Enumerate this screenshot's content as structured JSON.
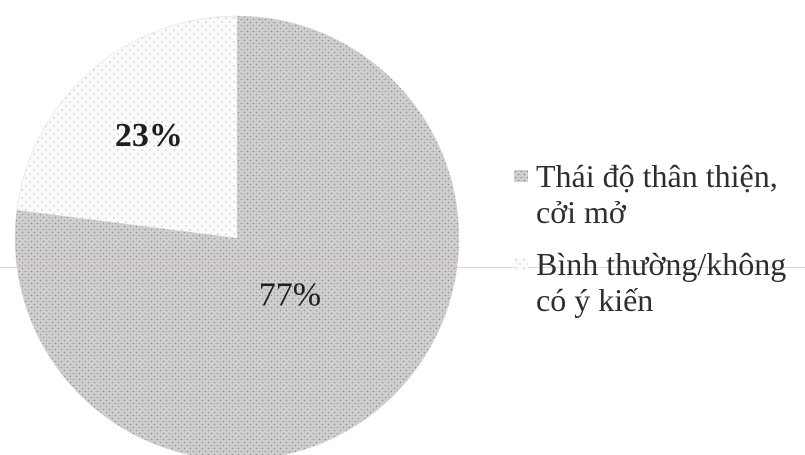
{
  "chart_data": {
    "type": "pie",
    "categories": [
      "Thái độ thân thiện, cởi mở",
      "Bình thường/không có ý kiến"
    ],
    "values": [
      77,
      23
    ],
    "data_labels": [
      "77%",
      "23%"
    ],
    "legend": [
      "Thái độ thân thiện, cởi mở",
      "Bình thường/không có ý kiến"
    ],
    "legend_position": "right",
    "start_angle_deg": 0,
    "direction": "clockwise",
    "colors": [
      "#b7b7b7",
      "#efefef"
    ]
  }
}
